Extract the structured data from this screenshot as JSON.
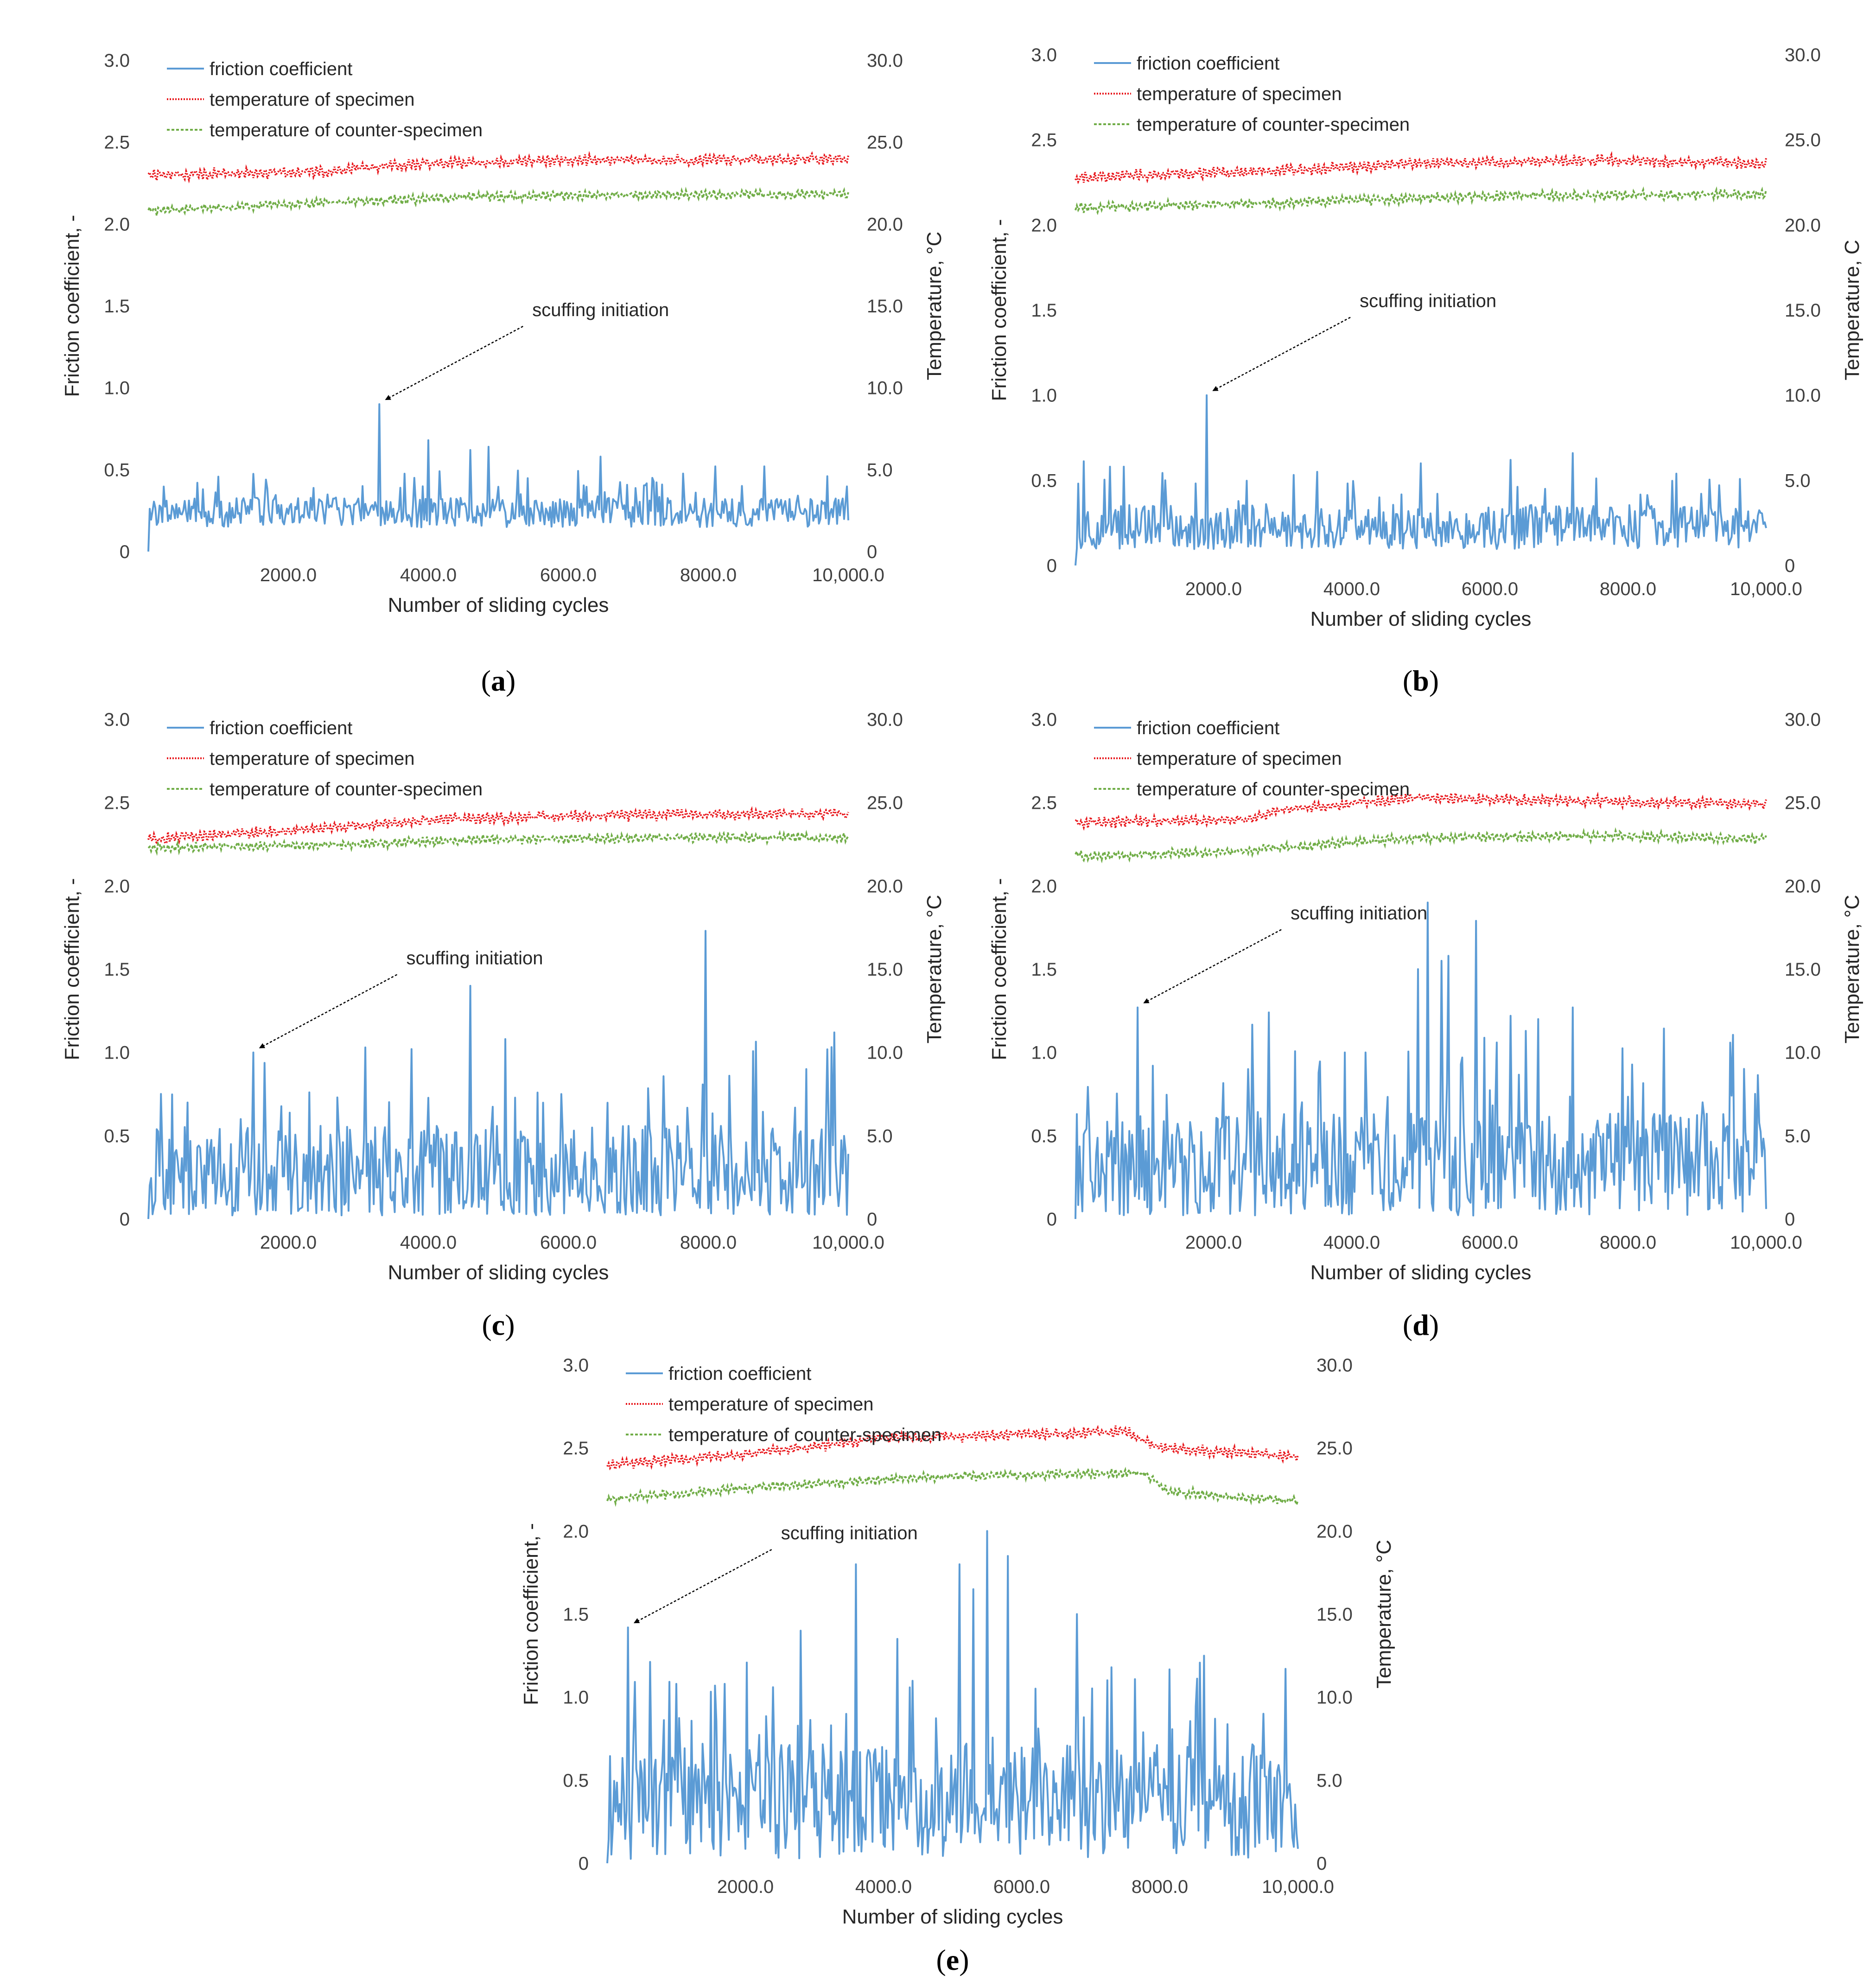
{
  "figure": {
    "colors": {
      "friction": "#5b9bd5",
      "specimen": "#e8171c",
      "counter": "#70ad47",
      "text": "#262626"
    }
  },
  "chart_data": [
    {
      "id": "a",
      "type": "line",
      "caption": "a",
      "xlabel": "Number of sliding cycles",
      "ylabel": "Friction coefficient, -",
      "y2label": "Temperature, °C",
      "xlim": [
        0,
        10000
      ],
      "ylim": [
        0,
        3.0
      ],
      "y2lim": [
        0,
        30.0
      ],
      "xticks": [
        2000,
        4000,
        6000,
        8000,
        10000
      ],
      "xtick_labels": [
        "2000.0",
        "4000.0",
        "6000.0",
        "8000.0",
        "10,000.0"
      ],
      "yticks": [
        0,
        0.5,
        1.0,
        1.5,
        2.0,
        2.5,
        3.0
      ],
      "ytick_labels": [
        "0",
        "0.5",
        "1.0",
        "1.5",
        "2.0",
        "2.5",
        "3.0"
      ],
      "y2ticks": [
        0,
        5,
        10,
        15,
        20,
        25,
        30
      ],
      "y2tick_labels": [
        "0",
        "5.0",
        "10.0",
        "15.0",
        "20.0",
        "25.0",
        "30.0"
      ],
      "legend": [
        "friction coefficient",
        "temperature of specimen",
        "temperature of counter-specimen"
      ],
      "annotation": {
        "text": "scuffing initiation",
        "x": 3300,
        "y": 0.9
      },
      "series": [
        {
          "name": "friction coefficient",
          "axis": "left",
          "base": 0.22,
          "var": 0.09,
          "peaks": [
            [
              3300,
              0.9
            ],
            [
              4000,
              0.68
            ],
            [
              4600,
              0.62
            ],
            [
              4850,
              0.64
            ],
            [
              6450,
              0.58
            ],
            [
              8100,
              0.52
            ],
            [
              8800,
              0.52
            ],
            [
              7200,
              0.45
            ],
            [
              9700,
              0.46
            ],
            [
              700,
              0.42
            ],
            [
              3800,
              0.45
            ]
          ]
        },
        {
          "name": "temperature of specimen",
          "axis": "right",
          "points": [
            [
              0,
              23.0
            ],
            [
              2500,
              23.2
            ],
            [
              4000,
              23.7
            ],
            [
              6000,
              23.9
            ],
            [
              8000,
              23.9
            ],
            [
              10000,
              24.0
            ]
          ],
          "amp": 0.35
        },
        {
          "name": "temperature of counter-specimen",
          "axis": "right",
          "points": [
            [
              0,
              20.8
            ],
            [
              2500,
              21.3
            ],
            [
              5000,
              21.7
            ],
            [
              7500,
              21.8
            ],
            [
              10000,
              21.8
            ]
          ],
          "amp": 0.3
        }
      ]
    },
    {
      "id": "b",
      "type": "line",
      "caption": "b",
      "xlabel": "Number of sliding cycles",
      "ylabel": "Friction coefficient, -",
      "y2label": "Temperature,  C",
      "xlim": [
        0,
        10000
      ],
      "ylim": [
        0,
        3.0
      ],
      "y2lim": [
        0,
        30.0
      ],
      "xticks": [
        2000,
        4000,
        6000,
        8000,
        10000
      ],
      "xtick_labels": [
        "2000.0",
        "4000.0",
        "6000.0",
        "8000.0",
        "10,000.0"
      ],
      "yticks": [
        0,
        0.5,
        1.0,
        1.5,
        2.0,
        2.5,
        3.0
      ],
      "ytick_labels": [
        "0",
        "0.5",
        "1.0",
        "1.5",
        "2.0",
        "2.5",
        "3.0"
      ],
      "y2ticks": [
        0,
        5,
        10,
        15,
        20,
        25,
        30
      ],
      "y2tick_labels": [
        "0",
        "5.0",
        "10.0",
        "15.0",
        "20.0",
        "25.0",
        "30.0"
      ],
      "legend": [
        "friction coefficient",
        "temperature of specimen",
        "temperature of counter-specimen"
      ],
      "annotation": {
        "text": "scuffing initiation",
        "x": 1900,
        "y": 1.0
      },
      "series": [
        {
          "name": "friction coefficient",
          "axis": "left",
          "base": 0.2,
          "var": 0.13,
          "peaks": [
            [
              1900,
              1.0
            ],
            [
              500,
              0.58
            ],
            [
              700,
              0.58
            ],
            [
              1300,
              0.5
            ],
            [
              3500,
              0.55
            ],
            [
              5000,
              0.6
            ],
            [
              6300,
              0.62
            ],
            [
              7200,
              0.66
            ],
            [
              6800,
              0.45
            ],
            [
              4400,
              0.4
            ]
          ]
        },
        {
          "name": "temperature of specimen",
          "axis": "right",
          "points": [
            [
              0,
              22.8
            ],
            [
              3000,
              23.2
            ],
            [
              5000,
              23.6
            ],
            [
              7500,
              23.8
            ],
            [
              10000,
              23.6
            ]
          ],
          "amp": 0.35
        },
        {
          "name": "temperature of counter-specimen",
          "axis": "right",
          "points": [
            [
              0,
              21.0
            ],
            [
              3000,
              21.3
            ],
            [
              6000,
              21.7
            ],
            [
              10000,
              21.8
            ]
          ],
          "amp": 0.3
        }
      ]
    },
    {
      "id": "c",
      "type": "line",
      "caption": "c",
      "xlabel": "Number of sliding cycles",
      "ylabel": "Friction coefficient, -",
      "y2label": "Temperature, °C",
      "xlim": [
        0,
        10000
      ],
      "ylim": [
        0,
        3.0
      ],
      "y2lim": [
        0,
        30.0
      ],
      "xticks": [
        2000,
        4000,
        6000,
        8000,
        10000
      ],
      "xtick_labels": [
        "2000.0",
        "4000.0",
        "6000.0",
        "8000.0",
        "10,000.0"
      ],
      "yticks": [
        0,
        0.5,
        1.0,
        1.5,
        2.0,
        2.5,
        3.0
      ],
      "ytick_labels": [
        "0",
        "0.5",
        "1.0",
        "1.5",
        "2.0",
        "2.5",
        "3.0"
      ],
      "y2ticks": [
        0,
        5,
        10,
        15,
        20,
        25,
        30
      ],
      "y2tick_labels": [
        "0",
        "5.0",
        "10.0",
        "15.0",
        "20.0",
        "25.0",
        "30.0"
      ],
      "legend": [
        "friction coefficient",
        "temperature of specimen",
        "temperature of counter-specimen"
      ],
      "annotation": {
        "text": "scuffing initiation",
        "x": 1500,
        "y": 1.0
      },
      "series": [
        {
          "name": "friction coefficient",
          "axis": "left",
          "base": 0.2,
          "var": 0.3,
          "peaks": [
            [
              1500,
              1.0
            ],
            [
              7950,
              1.73
            ],
            [
              4600,
              1.4
            ],
            [
              3100,
              1.03
            ],
            [
              3750,
              1.02
            ],
            [
              5100,
              1.08
            ],
            [
              8300,
              0.86
            ],
            [
              9800,
              1.12
            ],
            [
              2300,
              0.76
            ],
            [
              2700,
              0.73
            ],
            [
              5900,
              0.75
            ],
            [
              9400,
              0.9
            ]
          ]
        },
        {
          "name": "temperature of specimen",
          "axis": "right",
          "points": [
            [
              0,
              22.8
            ],
            [
              2000,
              23.3
            ],
            [
              4000,
              24.0
            ],
            [
              6000,
              24.2
            ],
            [
              8000,
              24.3
            ],
            [
              10000,
              24.3
            ]
          ],
          "amp": 0.35
        },
        {
          "name": "temperature of counter-specimen",
          "axis": "right",
          "points": [
            [
              0,
              22.3
            ],
            [
              2000,
              22.4
            ],
            [
              5000,
              22.8
            ],
            [
              8000,
              22.9
            ],
            [
              10000,
              22.9
            ]
          ],
          "amp": 0.3
        }
      ]
    },
    {
      "id": "d",
      "type": "line",
      "caption": "d",
      "xlabel": "Number of sliding cycles",
      "ylabel": "Friction coefficient, -",
      "y2label": "Temperature, °C",
      "xlim": [
        0,
        10000
      ],
      "ylim": [
        0,
        3.0
      ],
      "y2lim": [
        0,
        30.0
      ],
      "xticks": [
        2000,
        4000,
        6000,
        8000,
        10000
      ],
      "xtick_labels": [
        "2000.0",
        "4000.0",
        "6000.0",
        "8000.0",
        "10,000.0"
      ],
      "yticks": [
        0,
        0.5,
        1.0,
        1.5,
        2.0,
        2.5,
        3.0
      ],
      "ytick_labels": [
        "0",
        "0.5",
        "1.0",
        "1.5",
        "2.0",
        "2.5",
        "3.0"
      ],
      "y2ticks": [
        0,
        5,
        10,
        15,
        20,
        25,
        30
      ],
      "y2tick_labels": [
        "0",
        "5.0",
        "10.0",
        "15.0",
        "20.0",
        "25.0",
        "30.0"
      ],
      "legend": [
        "friction coefficient",
        "temperature of specimen",
        "temperature of counter-specimen"
      ],
      "annotation": {
        "text": "scuffing initiation",
        "x": 900,
        "y": 1.27
      },
      "series": [
        {
          "name": "friction coefficient",
          "axis": "left",
          "base": 0.25,
          "var": 0.32,
          "peaks": [
            [
              900,
              1.27
            ],
            [
              5100,
              1.9
            ],
            [
              5400,
              1.58
            ],
            [
              5800,
              1.79
            ],
            [
              4950,
              1.5
            ],
            [
              5300,
              1.55
            ],
            [
              2800,
              1.24
            ],
            [
              6700,
              1.2
            ],
            [
              7200,
              1.27
            ],
            [
              3900,
              1.0
            ],
            [
              4200,
              1.0
            ],
            [
              6300,
              1.22
            ],
            [
              2500,
              0.9
            ]
          ]
        },
        {
          "name": "temperature of specimen",
          "axis": "right",
          "points": [
            [
              0,
              23.8
            ],
            [
              2500,
              24.0
            ],
            [
              3000,
              24.6
            ],
            [
              5000,
              25.3
            ],
            [
              7000,
              25.1
            ],
            [
              9000,
              25.0
            ],
            [
              10000,
              24.9
            ]
          ],
          "amp": 0.35
        },
        {
          "name": "temperature of counter-specimen",
          "axis": "right",
          "points": [
            [
              0,
              21.8
            ],
            [
              2000,
              22.0
            ],
            [
              5000,
              22.9
            ],
            [
              8000,
              23.0
            ],
            [
              10000,
              22.8
            ]
          ],
          "amp": 0.3
        }
      ]
    },
    {
      "id": "e",
      "type": "line",
      "caption": "e",
      "xlabel": "Number of sliding cycles",
      "ylabel": "Friction coefficient, -",
      "y2label": "Temperature, °C",
      "xlim": [
        0,
        10000
      ],
      "ylim": [
        0,
        3.0
      ],
      "y2lim": [
        0,
        30.0
      ],
      "xticks": [
        2000,
        4000,
        6000,
        8000,
        10000
      ],
      "xtick_labels": [
        "2000.0",
        "4000.0",
        "6000.0",
        "8000.0",
        "10,000.0"
      ],
      "yticks": [
        0,
        0.5,
        1.0,
        1.5,
        2.0,
        2.5,
        3.0
      ],
      "ytick_labels": [
        "0",
        "0.5",
        "1.0",
        "1.5",
        "2.0",
        "2.5",
        "3.0"
      ],
      "y2ticks": [
        0,
        5,
        10,
        15,
        20,
        25,
        30
      ],
      "y2tick_labels": [
        "0",
        "5.0",
        "10.0",
        "15.0",
        "20.0",
        "25.0",
        "30.0"
      ],
      "legend": [
        "friction coefficient",
        "temperature of specimen",
        "temperature of counter-specimen"
      ],
      "annotation": {
        "text": "scuffing initiation",
        "x": 300,
        "y": 1.42
      },
      "series": [
        {
          "name": "friction coefficient",
          "axis": "left",
          "base": 0.3,
          "var": 0.35,
          "peaks": [
            [
              300,
              1.42
            ],
            [
              5500,
              2.0
            ],
            [
              5100,
              1.8
            ],
            [
              5300,
              1.65
            ],
            [
              5800,
              1.85
            ],
            [
              3600,
              1.8
            ],
            [
              6800,
              1.5
            ],
            [
              2800,
              1.4
            ],
            [
              1000,
              1.08
            ],
            [
              1700,
              1.08
            ],
            [
              7300,
              1.18
            ],
            [
              2400,
              1.06
            ],
            [
              9500,
              0.9
            ],
            [
              8800,
              0.87
            ]
          ]
        },
        {
          "name": "temperature of specimen",
          "axis": "right",
          "points": [
            [
              0,
              24.0
            ],
            [
              2000,
              24.6
            ],
            [
              4000,
              25.6
            ],
            [
              6000,
              25.8
            ],
            [
              7500,
              26.0
            ],
            [
              8000,
              25.0
            ],
            [
              10000,
              24.5
            ]
          ],
          "amp": 0.35
        },
        {
          "name": "temperature of counter-specimen",
          "axis": "right",
          "points": [
            [
              0,
              21.9
            ],
            [
              2000,
              22.6
            ],
            [
              5000,
              23.3
            ],
            [
              7800,
              23.5
            ],
            [
              8100,
              22.4
            ],
            [
              9300,
              22.0
            ],
            [
              10000,
              21.8
            ]
          ],
          "amp": 0.3
        }
      ]
    }
  ]
}
